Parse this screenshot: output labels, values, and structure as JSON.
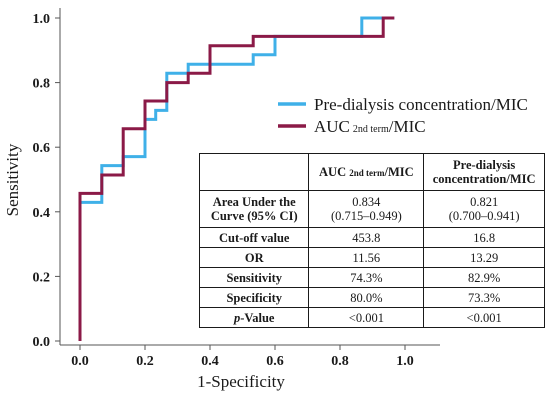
{
  "chart_data": {
    "type": "line",
    "xlabel": "1-Specificity",
    "ylabel": "Sensitivity",
    "xlim": [
      0.0,
      1.0
    ],
    "ylim": [
      0.0,
      1.0
    ],
    "x_ticks": [
      "0.0",
      "0.2",
      "0.4",
      "0.6",
      "0.8",
      "1.0"
    ],
    "y_ticks": [
      "0.0",
      "0.2",
      "0.4",
      "0.6",
      "0.8",
      "1.0"
    ],
    "grid": false,
    "legend_position": "upper-right",
    "series": [
      {
        "legend_main": "Pre-dialysis concentration/MIC",
        "legend_sub": "",
        "legend_suffix": "",
        "color": "#3fb0e8",
        "x": [
          0.0,
          0.0,
          0.0,
          0.067,
          0.067,
          0.133,
          0.133,
          0.2,
          0.2,
          0.233,
          0.233,
          0.267,
          0.267,
          0.333,
          0.333,
          0.533,
          0.533,
          0.6,
          0.6,
          0.867,
          0.867,
          0.933,
          0.933,
          0.967
        ],
        "y": [
          0.0,
          0.429,
          0.429,
          0.429,
          0.543,
          0.543,
          0.571,
          0.571,
          0.686,
          0.686,
          0.714,
          0.714,
          0.829,
          0.829,
          0.857,
          0.857,
          0.886,
          0.886,
          0.943,
          0.943,
          1.0,
          1.0,
          1.0,
          1.0
        ]
      },
      {
        "legend_main": "AUC",
        "legend_sub": "2nd term",
        "legend_suffix": "/MIC",
        "color": "#8b1a47",
        "x": [
          0.0,
          0.0,
          0.067,
          0.067,
          0.133,
          0.133,
          0.2,
          0.2,
          0.267,
          0.267,
          0.333,
          0.333,
          0.4,
          0.4,
          0.533,
          0.533,
          0.933,
          0.933,
          0.967
        ],
        "y": [
          0.0,
          0.457,
          0.457,
          0.514,
          0.514,
          0.657,
          0.657,
          0.743,
          0.743,
          0.8,
          0.8,
          0.829,
          0.829,
          0.914,
          0.914,
          0.943,
          0.943,
          1.0,
          1.0
        ]
      }
    ],
    "table": {
      "columns": [
        {
          "main": "AUC ",
          "sub": "2nd term",
          "suffix": "/MIC",
          "line2": ""
        },
        {
          "main": "Pre-dialysis",
          "sub": "",
          "suffix": "",
          "line2": "concentration/MIC"
        }
      ],
      "rows": [
        {
          "label": "Area Under the",
          "label2": "Curve (95% CI)",
          "v1": "0.834",
          "v1b": "(0.715–0.949)",
          "v2": "0.821",
          "v2b": "(0.700–0.941)"
        },
        {
          "label": "Cut-off value",
          "v1": "453.8",
          "v2": "16.8"
        },
        {
          "label": "OR",
          "v1": "11.56",
          "v2": "13.29"
        },
        {
          "label": "Sensitivity",
          "v1": "74.3%",
          "v2": "82.9%"
        },
        {
          "label": "Specificity",
          "v1": "80.0%",
          "v2": "73.3%"
        },
        {
          "label_italic": "p",
          "label": "-Value",
          "v1": "<0.001",
          "v2": "<0.001"
        }
      ]
    }
  }
}
